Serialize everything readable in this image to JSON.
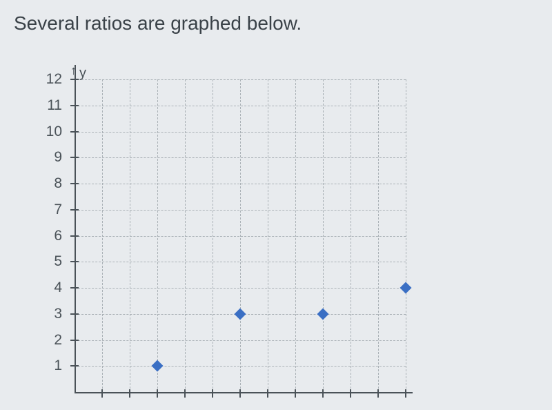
{
  "title": "Several ratios are graphed below.",
  "chart": {
    "type": "scatter",
    "y_axis_label": "y",
    "y_axis_arrow": "↑",
    "ylim": [
      0,
      12
    ],
    "yticks": [
      1,
      2,
      3,
      4,
      5,
      6,
      7,
      8,
      9,
      10,
      11,
      12
    ],
    "ytick_labels": [
      "1",
      "2",
      "3",
      "4",
      "5",
      "6",
      "7",
      "8",
      "9",
      "10",
      "11",
      "12"
    ],
    "xlim": [
      0,
      12
    ],
    "xticks": [
      1,
      2,
      3,
      4,
      5,
      6,
      7,
      8,
      9,
      10,
      11,
      12
    ],
    "grid_color": "#aab1b6",
    "axis_color": "#4a5258",
    "background_color": "#e8ebee",
    "text_color": "#3a4248",
    "point_color": "#3a6fc4",
    "point_size": 12,
    "marker": "diamond",
    "data": [
      {
        "x": 3,
        "y": 1
      },
      {
        "x": 6,
        "y": 3
      },
      {
        "x": 9,
        "y": 3
      },
      {
        "x": 12,
        "y": 4
      }
    ],
    "title_fontsize": 28,
    "label_fontsize": 21
  }
}
